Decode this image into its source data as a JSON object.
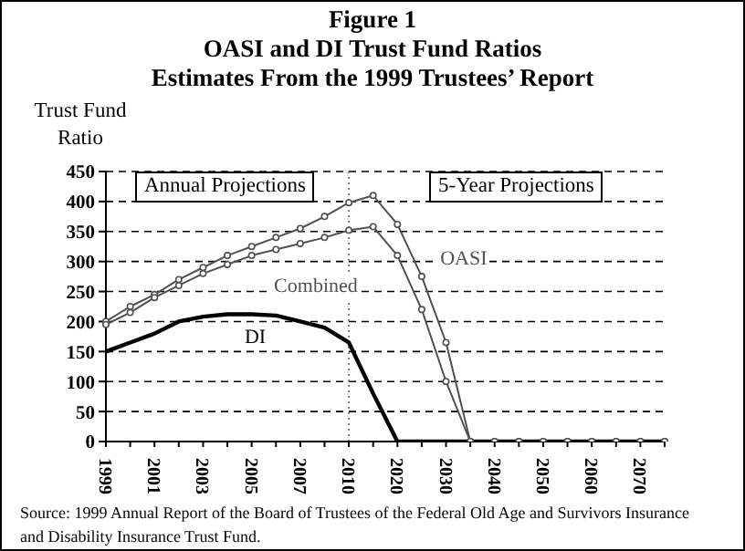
{
  "chart_data": {
    "type": "line",
    "title": "Figure 1",
    "subtitle": "OASI and DI Trust Fund Ratios\nEstimates From the 1999 Trustees’ Report",
    "ylabel": "Trust Fund\nRatio",
    "categories": [
      "1999",
      null,
      "2001",
      null,
      "2003",
      null,
      "2005",
      null,
      "2007",
      null,
      "2010",
      null,
      "2020",
      null,
      "2030",
      null,
      "2040",
      null,
      "2050",
      null,
      "2060",
      null,
      "2070",
      null
    ],
    "series": [
      {
        "name": "OASI",
        "color": "#505050",
        "marker": "circle",
        "values": [
          200,
          225,
          245,
          270,
          290,
          310,
          325,
          340,
          355,
          375,
          398,
          410,
          362,
          275,
          165,
          0,
          0,
          0,
          0,
          0,
          0,
          0,
          0,
          0
        ]
      },
      {
        "name": "Combined",
        "color": "#505050",
        "marker": "circle",
        "values": [
          195,
          215,
          240,
          260,
          280,
          295,
          310,
          320,
          330,
          340,
          352,
          358,
          310,
          220,
          100,
          0,
          0,
          0,
          0,
          0,
          0,
          0,
          0,
          0
        ]
      },
      {
        "name": "DI",
        "color": "#000000",
        "marker": "none",
        "values": [
          150,
          165,
          180,
          200,
          208,
          212,
          212,
          210,
          200,
          190,
          165,
          80,
          0,
          0,
          0,
          0,
          0,
          0,
          0,
          0,
          0,
          0,
          0,
          0
        ]
      }
    ],
    "ylim": [
      0,
      450
    ],
    "yticks": [
      0,
      50,
      100,
      150,
      200,
      250,
      300,
      350,
      400,
      450
    ],
    "grid": "y",
    "line_style": "solid",
    "ref_lines": [
      {
        "axis": "x",
        "value": "2010",
        "line_style": "dotted",
        "color": "#808080"
      }
    ],
    "annotations": [
      "Annual Projections",
      "5-Year Projections",
      "Source: 1999 Annual Report of the Board of Trustees of the Federal Old Age and Survivors Insurance and Disability Insurance Trust Fund."
    ]
  }
}
